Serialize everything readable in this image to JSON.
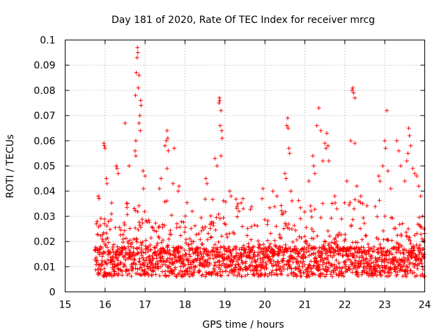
{
  "chart_data": {
    "type": "scatter",
    "title": "Day 181 of 2020, Rate Of TEC Index for receiver mrcg",
    "xlabel": "GPS time / hours",
    "ylabel": "ROTI / TECUs",
    "xlim": [
      15,
      24
    ],
    "ylim": [
      0,
      0.1
    ],
    "xticks": [
      "15",
      "16",
      "17",
      "18",
      "19",
      "20",
      "21",
      "22",
      "23",
      "24"
    ],
    "yticks": [
      "0",
      "0.01",
      "0.02",
      "0.03",
      "0.04",
      "0.05",
      "0.06",
      "0.07",
      "0.08",
      "0.09",
      "0.1"
    ],
    "grid": true,
    "marker": "+",
    "series_color": "#ff0000",
    "data_window": [
      15.75,
      24.0
    ],
    "points": [
      [
        16.81,
        0.097
      ],
      [
        16.82,
        0.095
      ],
      [
        16.8,
        0.093
      ],
      [
        16.78,
        0.087
      ],
      [
        16.85,
        0.086
      ],
      [
        16.83,
        0.081
      ],
      [
        16.76,
        0.078
      ],
      [
        16.89,
        0.076
      ],
      [
        16.9,
        0.074
      ],
      [
        16.87,
        0.07
      ],
      [
        16.85,
        0.067
      ],
      [
        16.88,
        0.064
      ],
      [
        16.5,
        0.067
      ],
      [
        16.77,
        0.06
      ],
      [
        16.75,
        0.056
      ],
      [
        16.77,
        0.054
      ],
      [
        16.6,
        0.05
      ],
      [
        16.95,
        0.048
      ],
      [
        16.96,
        0.041
      ],
      [
        17.0,
        0.046
      ],
      [
        15.97,
        0.059
      ],
      [
        15.98,
        0.058
      ],
      [
        16.0,
        0.057
      ],
      [
        16.03,
        0.045
      ],
      [
        16.05,
        0.043
      ],
      [
        16.28,
        0.05
      ],
      [
        16.3,
        0.049
      ],
      [
        16.33,
        0.047
      ],
      [
        15.83,
        0.038
      ],
      [
        15.85,
        0.037
      ],
      [
        15.8,
        0.028
      ],
      [
        15.78,
        0.027
      ],
      [
        17.55,
        0.064
      ],
      [
        17.57,
        0.061
      ],
      [
        17.53,
        0.06
      ],
      [
        17.5,
        0.058
      ],
      [
        17.58,
        0.056
      ],
      [
        17.55,
        0.049
      ],
      [
        17.4,
        0.045
      ],
      [
        17.36,
        0.041
      ],
      [
        17.73,
        0.057
      ],
      [
        17.7,
        0.043
      ],
      [
        17.85,
        0.042
      ],
      [
        17.83,
        0.04
      ],
      [
        18.52,
        0.045
      ],
      [
        18.55,
        0.043
      ],
      [
        18.75,
        0.053
      ],
      [
        18.8,
        0.05
      ],
      [
        18.86,
        0.077
      ],
      [
        18.87,
        0.076
      ],
      [
        18.85,
        0.075
      ],
      [
        18.9,
        0.072
      ],
      [
        18.88,
        0.066
      ],
      [
        18.92,
        0.064
      ],
      [
        18.93,
        0.061
      ],
      [
        18.9,
        0.054
      ],
      [
        19.12,
        0.04
      ],
      [
        19.15,
        0.038
      ],
      [
        19.45,
        0.037
      ],
      [
        19.95,
        0.041
      ],
      [
        19.93,
        0.037
      ],
      [
        20.2,
        0.04
      ],
      [
        20.3,
        0.038
      ],
      [
        20.57,
        0.069
      ],
      [
        20.55,
        0.066
      ],
      [
        20.58,
        0.065
      ],
      [
        20.6,
        0.057
      ],
      [
        20.62,
        0.055
      ],
      [
        20.5,
        0.047
      ],
      [
        20.53,
        0.045
      ],
      [
        20.65,
        0.04
      ],
      [
        21.35,
        0.073
      ],
      [
        21.3,
        0.066
      ],
      [
        21.4,
        0.064
      ],
      [
        21.2,
        0.054
      ],
      [
        21.22,
        0.05
      ],
      [
        21.25,
        0.047
      ],
      [
        21.5,
        0.059
      ],
      [
        21.53,
        0.057
      ],
      [
        21.55,
        0.063
      ],
      [
        21.58,
        0.058
      ],
      [
        21.6,
        0.052
      ],
      [
        21.45,
        0.052
      ],
      [
        21.1,
        0.044
      ],
      [
        21.75,
        0.038
      ],
      [
        21.8,
        0.033
      ],
      [
        22.2,
        0.081
      ],
      [
        22.18,
        0.08
      ],
      [
        22.22,
        0.079
      ],
      [
        22.25,
        0.077
      ],
      [
        22.15,
        0.06
      ],
      [
        22.25,
        0.059
      ],
      [
        22.05,
        0.044
      ],
      [
        22.3,
        0.042
      ],
      [
        22.35,
        0.036
      ],
      [
        22.4,
        0.038
      ],
      [
        22.45,
        0.035
      ],
      [
        23.05,
        0.072
      ],
      [
        23.0,
        0.06
      ],
      [
        23.02,
        0.057
      ],
      [
        22.95,
        0.05
      ],
      [
        22.85,
        0.046
      ],
      [
        22.88,
        0.044
      ],
      [
        23.08,
        0.048
      ],
      [
        23.15,
        0.041
      ],
      [
        23.3,
        0.06
      ],
      [
        23.35,
        0.056
      ],
      [
        23.4,
        0.05
      ],
      [
        23.6,
        0.065
      ],
      [
        23.62,
        0.062
      ],
      [
        23.65,
        0.058
      ],
      [
        23.58,
        0.055
      ],
      [
        23.55,
        0.052
      ],
      [
        23.7,
        0.049
      ],
      [
        23.75,
        0.047
      ],
      [
        23.8,
        0.046
      ],
      [
        23.85,
        0.042
      ],
      [
        23.5,
        0.044
      ],
      [
        23.9,
        0.038
      ],
      [
        23.95,
        0.03
      ],
      [
        23.98,
        0.025
      ],
      [
        23.99,
        0.006
      ]
    ]
  }
}
